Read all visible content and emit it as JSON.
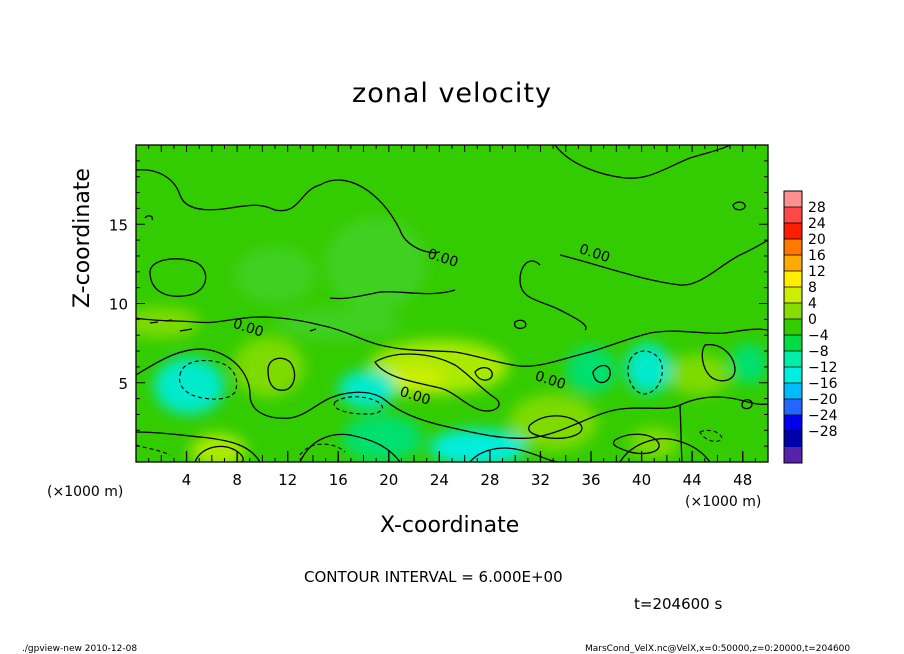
{
  "chart_data": {
    "type": "heatmap",
    "title": "zonal velocity",
    "xlabel": "X-coordinate",
    "ylabel": "Z-coordinate",
    "x_unit_left": "(×1000 m)",
    "x_unit_right": "(×1000 m)",
    "xlim": [
      0,
      50
    ],
    "ylim": [
      0,
      20
    ],
    "x_ticks": [
      4,
      8,
      12,
      16,
      20,
      24,
      28,
      32,
      36,
      40,
      44,
      48
    ],
    "x_tick_labels": [
      "4",
      "8",
      "12",
      "16",
      "20",
      "24",
      "28",
      "32",
      "36",
      "40",
      "44",
      "48"
    ],
    "y_ticks": [
      5,
      10,
      15
    ],
    "y_tick_labels": [
      "5",
      "10",
      "15"
    ],
    "contour_labels": [
      {
        "text": "0.00",
        "x": 23,
        "y": 12.9
      },
      {
        "text": "0.00",
        "x": 35,
        "y": 13.2
      },
      {
        "text": "0.00",
        "x": 7.6,
        "y": 8.5
      },
      {
        "text": "0.00",
        "x": 31.5,
        "y": 5.2
      },
      {
        "text": "0.00",
        "x": 20.8,
        "y": 4.2
      }
    ],
    "contour_interval_text": "CONTOUR INTERVAL = 6.000E+00",
    "time_text": "t=204600 s",
    "colorbar": {
      "labels": [
        "28",
        "24",
        "20",
        "16",
        "12",
        "8",
        "4",
        "0",
        "−4",
        "−8",
        "−12",
        "−16",
        "−20",
        "−24",
        "−28"
      ],
      "colors": [
        "#ff9090",
        "#ff4848",
        "#ff1e00",
        "#ff7800",
        "#ffaa00",
        "#ffee00",
        "#ccee00",
        "#88dd00",
        "#33cc00",
        "#00dd44",
        "#00eeaa",
        "#00eedd",
        "#00bbff",
        "#2266ff",
        "#0000ee",
        "#0000aa",
        "#5522aa"
      ]
    },
    "field_blobs": [
      {
        "x": 24,
        "y": 6.0,
        "rx": 5.5,
        "ry": 1.7,
        "value": 6
      },
      {
        "x": 22,
        "y": 5.2,
        "rx": 2.5,
        "ry": 0.9,
        "value": 9
      },
      {
        "x": 10.5,
        "y": 6.0,
        "rx": 2.8,
        "ry": 1.9,
        "value": 5
      },
      {
        "x": 4.2,
        "y": 4.8,
        "rx": 2.8,
        "ry": 1.8,
        "value": -8
      },
      {
        "x": 6.5,
        "y": 0.7,
        "rx": 2.2,
        "ry": 1.1,
        "value": 6
      },
      {
        "x": 33,
        "y": 2.5,
        "rx": 3.5,
        "ry": 1.8,
        "value": 5
      },
      {
        "x": 41,
        "y": 1.2,
        "rx": 2.0,
        "ry": 1.0,
        "value": 4
      },
      {
        "x": 44.5,
        "y": 5.5,
        "rx": 2.5,
        "ry": 1.3,
        "value": 4
      },
      {
        "x": 40.5,
        "y": 5.9,
        "rx": 1.8,
        "ry": 1.6,
        "value": -7
      },
      {
        "x": 18.3,
        "y": 4.6,
        "rx": 2.3,
        "ry": 1.2,
        "value": -7
      },
      {
        "x": 27,
        "y": 0.9,
        "rx": 3.8,
        "ry": 1.2,
        "value": -10
      },
      {
        "x": 19.5,
        "y": 1.5,
        "rx": 3.2,
        "ry": 1.5,
        "value": -4
      },
      {
        "x": 36,
        "y": 5.8,
        "rx": 2.0,
        "ry": 1.5,
        "value": -3
      },
      {
        "x": 48.5,
        "y": 6.2,
        "rx": 1.5,
        "ry": 1.3,
        "value": -5
      },
      {
        "x": 11,
        "y": 11.8,
        "rx": 3.2,
        "ry": 1.8,
        "value": 2
      },
      {
        "x": 19,
        "y": 12.5,
        "rx": 4.0,
        "ry": 3.0,
        "value": -2
      },
      {
        "x": 2,
        "y": 8.8,
        "rx": 3.0,
        "ry": 1.0,
        "value": 3
      },
      {
        "x": 16,
        "y": 8.7,
        "rx": 5.0,
        "ry": 1.0,
        "value": 2
      }
    ]
  },
  "footer": {
    "left": "./gpview-new  2010-12-08",
    "right": "MarsCond_VelX.nc@VelX,x=0:50000,z=0:20000,t=204600"
  }
}
